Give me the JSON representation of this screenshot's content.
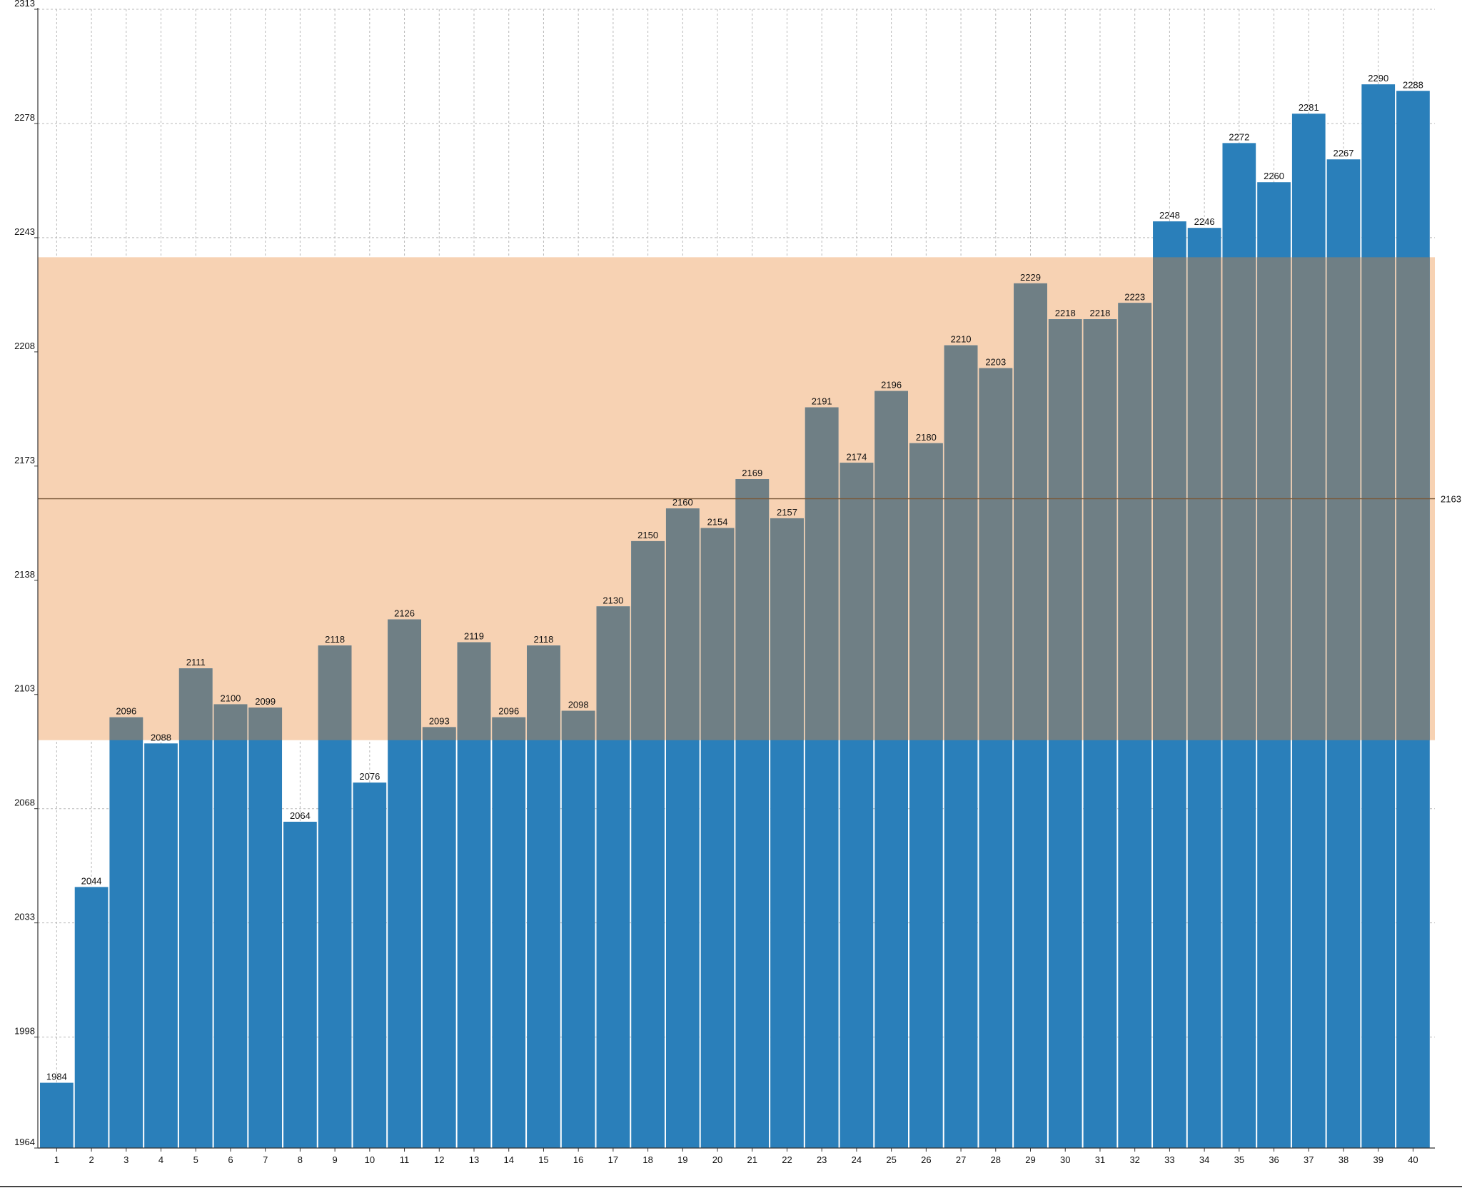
{
  "chart_data": {
    "type": "bar",
    "categories": [
      "1",
      "2",
      "3",
      "4",
      "5",
      "6",
      "7",
      "8",
      "9",
      "10",
      "11",
      "12",
      "13",
      "14",
      "15",
      "16",
      "17",
      "18",
      "19",
      "20",
      "21",
      "22",
      "23",
      "24",
      "25",
      "26",
      "27",
      "28",
      "29",
      "30",
      "31",
      "32",
      "33",
      "34",
      "35",
      "36",
      "37",
      "38",
      "39",
      "40"
    ],
    "values": [
      1984,
      2044,
      2096,
      2088,
      2111,
      2100,
      2099,
      2064,
      2118,
      2076,
      2126,
      2093,
      2119,
      2096,
      2118,
      2098,
      2130,
      2150,
      2160,
      2154,
      2169,
      2157,
      2191,
      2174,
      2196,
      2180,
      2210,
      2203,
      2229,
      2218,
      2218,
      2223,
      2248,
      2246,
      2272,
      2260,
      2281,
      2267,
      2290,
      2288
    ],
    "title": "",
    "xlabel": "",
    "ylabel": "",
    "ylim": [
      1964,
      2313
    ],
    "yticks": [
      1964,
      1998,
      2033,
      2068,
      2103,
      2138,
      2173,
      2208,
      2243,
      2278,
      2313
    ],
    "band": {
      "low": 2089,
      "high": 2237,
      "color": "#f7d2b3"
    },
    "mean_line": {
      "value": 2163,
      "label": "2163",
      "color": "#7a5a3a"
    },
    "bar_color": "#2a7fba",
    "overlap_color": "#6f7f85",
    "grid": true,
    "legend": "none"
  }
}
